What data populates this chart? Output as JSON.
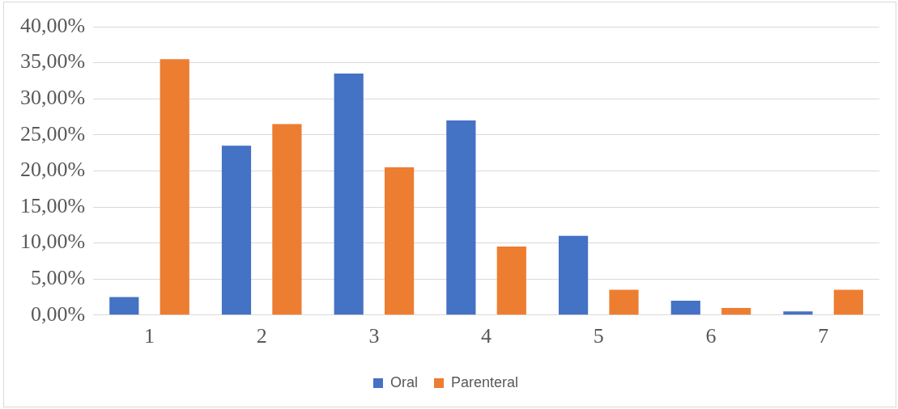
{
  "chart_data": {
    "type": "bar",
    "categories": [
      "1",
      "2",
      "3",
      "4",
      "5",
      "6",
      "7"
    ],
    "series": [
      {
        "name": "Oral",
        "color": "#4472c4",
        "values": [
          2.5,
          23.5,
          33.5,
          27,
          11,
          2,
          0.5
        ]
      },
      {
        "name": "Parenteral",
        "color": "#ed7d31",
        "values": [
          35.5,
          26.5,
          20.5,
          9.5,
          3.5,
          1,
          3.5
        ]
      }
    ],
    "ylim": [
      0,
      40
    ],
    "yticks": [
      {
        "value": 0,
        "label": "0,00%"
      },
      {
        "value": 5,
        "label": "5,00%"
      },
      {
        "value": 10,
        "label": "10,00%"
      },
      {
        "value": 15,
        "label": "15,00%"
      },
      {
        "value": 20,
        "label": "20,00%"
      },
      {
        "value": 25,
        "label": "25,00%"
      },
      {
        "value": 30,
        "label": "30,00%"
      },
      {
        "value": 35,
        "label": "35,00%"
      },
      {
        "value": 40,
        "label": "40,00%"
      }
    ],
    "grid": "y",
    "legend": "bottom"
  }
}
